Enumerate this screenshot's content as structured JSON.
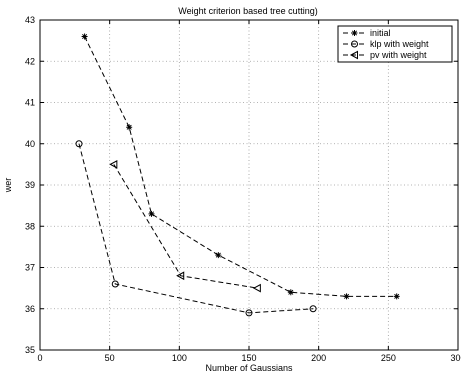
{
  "chart_data": {
    "type": "line",
    "title": "Weight criterion based tree cutting)",
    "xlabel": "Number of Gaussians",
    "ylabel": "wer",
    "xlim": [
      0,
      300
    ],
    "ylim": [
      35,
      43
    ],
    "xticks": [
      0,
      50,
      100,
      150,
      200,
      250,
      300
    ],
    "yticks": [
      35,
      36,
      37,
      38,
      39,
      40,
      41,
      42,
      43
    ],
    "grid": true,
    "legend_position": "top-right",
    "series": [
      {
        "name": "initial",
        "marker": "star",
        "x": [
          32,
          64,
          80,
          128,
          180,
          220,
          256
        ],
        "y": [
          42.6,
          40.4,
          38.3,
          37.3,
          36.4,
          36.3,
          36.3
        ]
      },
      {
        "name": "klp with weight",
        "marker": "circle",
        "x": [
          28,
          54,
          150,
          196
        ],
        "y": [
          40.0,
          36.6,
          35.9,
          36.0
        ]
      },
      {
        "name": "pv with weight",
        "marker": "triangle-left",
        "x": [
          53,
          101,
          156
        ],
        "y": [
          39.5,
          36.8,
          36.5
        ]
      }
    ]
  }
}
